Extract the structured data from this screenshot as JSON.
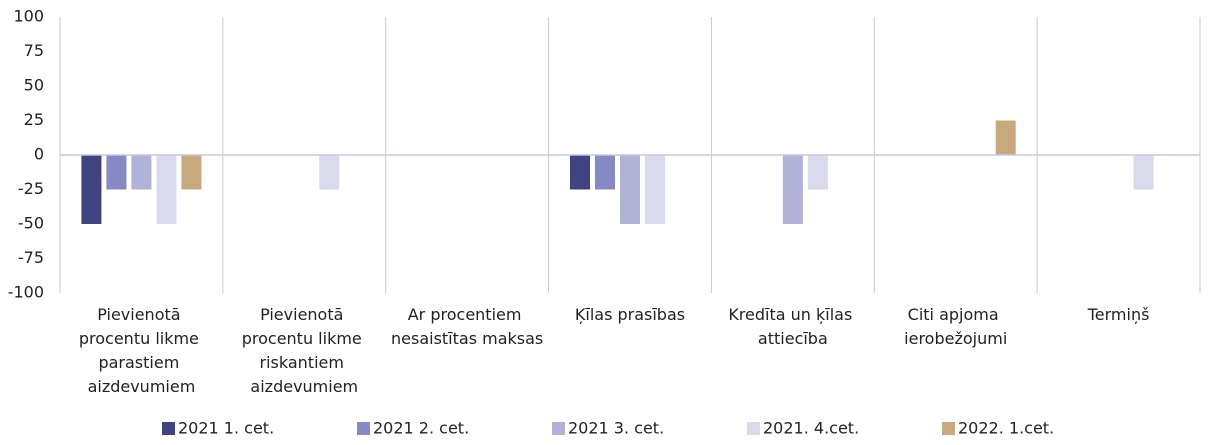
{
  "chart_data": {
    "type": "bar",
    "categories": [
      "Pievienotā procentu likme parastiem aizdevumiem",
      "Pievienotā procentu likme riskantiem aizdevumiem",
      "Ar procentiem nesaistītas maksas",
      "Ķīlas prasības",
      "Kredīta un ķīlas attiecība",
      "Citi apjoma ierobežojumi",
      "Termiņš"
    ],
    "series": [
      {
        "name": "2021 1. cet.",
        "color": "#3f437f",
        "values": [
          -50,
          0,
          0,
          -25,
          0,
          0,
          0
        ]
      },
      {
        "name": "2021 2. cet.",
        "color": "#8589c4",
        "values": [
          -25,
          0,
          0,
          -25,
          0,
          0,
          0
        ]
      },
      {
        "name": "2021 3. cet.",
        "color": "#b0b2d8",
        "values": [
          -25,
          0,
          0,
          -50,
          -50,
          0,
          0
        ]
      },
      {
        "name": "2021. 4.cet.",
        "color": "#d9daec",
        "values": [
          -50,
          -25,
          0,
          -50,
          -25,
          0,
          -25
        ]
      },
      {
        "name": "2022. 1.cet.",
        "color": "#c8a97e",
        "values": [
          -25,
          0,
          0,
          0,
          0,
          25,
          0
        ]
      }
    ],
    "ylim": [
      -100,
      100
    ],
    "yticks": [
      -100,
      -75,
      -50,
      -25,
      0,
      25,
      50,
      75,
      100
    ],
    "legend": "bottom"
  }
}
